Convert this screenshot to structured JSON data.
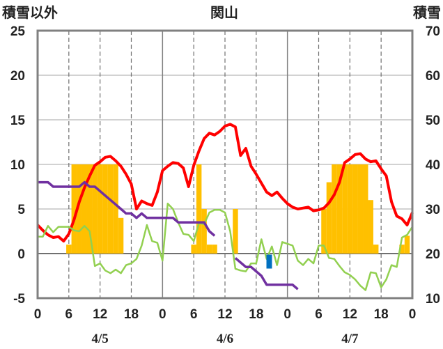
{
  "chart_data": {
    "type": "line",
    "title": "関山",
    "left_axis_label": "積雪以外",
    "right_axis_label": "積雪",
    "ylim_left": [
      -5,
      25
    ],
    "ylim_right": [
      10,
      70
    ],
    "yticks_left": [
      "25",
      "20",
      "15",
      "10",
      "5",
      "0",
      "-5"
    ],
    "yticks_right": [
      "70",
      "60",
      "50",
      "40",
      "30",
      "20",
      "10"
    ],
    "xlim_hours": [
      0,
      72
    ],
    "xtick_labels": [
      "0",
      "6",
      "12",
      "18",
      "0",
      "6",
      "12",
      "18",
      "0",
      "6",
      "12",
      "18",
      "0"
    ],
    "date_labels": [
      "4/5",
      "4/6",
      "4/7"
    ],
    "grid": "vertical dashed every 6 h; solid at day boundaries and 0",
    "colors": {
      "precipitation": "#ffc000",
      "temperature": "#ff0000",
      "wind": "#92d050",
      "snow": "#7030a0",
      "marker": "#0070c0"
    },
    "bars": {
      "name": "precipitation",
      "axis": "left",
      "x": [
        6,
        7,
        8,
        9,
        10,
        11,
        12,
        13,
        14,
        15,
        16,
        30,
        31,
        32,
        33,
        34,
        38,
        55,
        56,
        57,
        58,
        59,
        60,
        61,
        62,
        63,
        64,
        65,
        66,
        67,
        68,
        70,
        71
      ],
      "values": [
        1,
        10,
        10,
        10,
        10,
        10,
        10,
        10,
        10,
        10,
        4,
        1,
        10,
        5,
        1,
        1,
        5,
        5,
        8,
        10,
        10,
        10,
        10,
        10,
        10,
        10,
        6,
        1,
        0,
        0,
        0,
        1,
        2
      ]
    },
    "series": [
      {
        "name": "temperature",
        "axis": "left",
        "x": [
          0,
          1,
          2,
          3,
          4,
          5,
          6,
          7,
          8,
          9,
          10,
          11,
          12,
          13,
          14,
          15,
          16,
          17,
          18,
          19,
          20,
          21,
          22,
          23,
          24,
          25,
          26,
          27,
          28,
          29,
          30,
          31,
          32,
          33,
          34,
          35,
          36,
          37,
          38,
          39,
          40,
          41,
          42,
          43,
          44,
          45,
          46,
          47,
          48,
          49,
          50,
          51,
          52,
          53,
          54,
          55,
          56,
          57,
          58,
          59,
          60,
          61,
          62,
          63,
          64,
          65,
          66,
          67,
          68,
          69,
          70,
          71,
          72
        ],
        "values": [
          3.2,
          2.6,
          2.1,
          1.8,
          1.9,
          1.4,
          2.2,
          3.8,
          5.8,
          7.4,
          8.7,
          9.9,
          10.3,
          10.8,
          10.9,
          10.4,
          9.8,
          8.9,
          7.8,
          5,
          5.9,
          5.6,
          5.4,
          6.9,
          9.3,
          9.8,
          10.2,
          10.1,
          9.6,
          7.5,
          9.9,
          11.5,
          12.9,
          13.5,
          13.3,
          13.7,
          14.3,
          14.5,
          14.2,
          11,
          11.8,
          9.8,
          8.9,
          7.9,
          6.9,
          6.5,
          6.9,
          6.2,
          5.6,
          5.2,
          5,
          5.1,
          5.2,
          4.8,
          4.9,
          5.1,
          5.7,
          6.6,
          8,
          10.2,
          10.6,
          11.1,
          11.2,
          10.6,
          10.3,
          10.4,
          9.5,
          8.7,
          5.8,
          4.2,
          3.9,
          3.2,
          4.6
        ]
      },
      {
        "name": "wind",
        "axis": "left",
        "x": [
          0,
          1,
          2,
          3,
          4,
          5,
          6,
          7,
          8,
          9,
          10,
          11,
          12,
          13,
          14,
          15,
          16,
          17,
          18,
          19,
          20,
          21,
          22,
          23,
          24,
          25,
          26,
          27,
          28,
          29,
          30,
          31,
          32,
          33,
          34,
          35,
          36,
          37,
          38,
          39,
          40,
          41,
          42,
          43,
          44,
          45,
          46,
          47,
          48,
          49,
          50,
          51,
          52,
          53,
          54,
          55,
          56,
          57,
          58,
          59,
          60,
          61,
          62,
          63,
          64,
          65,
          66,
          67,
          68,
          69,
          70,
          71,
          72
        ],
        "values": [
          1.9,
          1.9,
          3.1,
          2.4,
          3,
          3,
          3,
          2.6,
          2.5,
          3.1,
          2.5,
          -1.4,
          -1.1,
          -1.9,
          -2.2,
          -1.8,
          -2.2,
          -1.3,
          -1.1,
          -0.6,
          0.9,
          3.2,
          1.4,
          1.2,
          -0.8,
          5.6,
          5,
          3.5,
          2.2,
          2.1,
          1.4,
          3.4,
          3.3,
          4.6,
          4.9,
          4.9,
          4.6,
          2.5,
          -1.7,
          -1.9,
          -2,
          -1.1,
          -1.1,
          1.6,
          -0.6,
          0.8,
          -1.3,
          1.3,
          1.1,
          0.9,
          -0.8,
          -1.3,
          -0.6,
          -1.1,
          0.9,
          0.9,
          -0.5,
          -0.6,
          -1.4,
          -2.1,
          -2.4,
          -2.9,
          -3.6,
          -4.1,
          -2.1,
          -2.2,
          -3.8,
          -2.9,
          -1.3,
          -1.5,
          1.8,
          2.1,
          3
        ]
      },
      {
        "name": "snow_depth",
        "axis": "right",
        "x": [
          0,
          1,
          2,
          3,
          4,
          5,
          6,
          7,
          8,
          9,
          10,
          11,
          12,
          13,
          14,
          15,
          16,
          17,
          18,
          19,
          20,
          21,
          22,
          23,
          24,
          25,
          26,
          27,
          28,
          29,
          30,
          31,
          32,
          33,
          34
        ],
        "values": [
          36,
          36,
          36,
          35,
          35,
          35,
          35,
          35,
          35,
          36,
          35,
          35,
          34,
          33,
          32,
          31,
          30,
          29,
          29,
          28,
          29,
          28,
          28,
          28,
          28,
          28,
          28,
          27,
          27,
          27,
          27,
          27,
          27,
          25,
          24
        ]
      },
      {
        "name": "snow_depth",
        "axis": "right",
        "x": [
          38,
          39,
          40,
          41,
          42,
          43,
          44,
          45,
          46,
          47,
          48,
          49,
          50
        ],
        "values": [
          19,
          18,
          17,
          17,
          16,
          15,
          13,
          13,
          13,
          13,
          13,
          13,
          12
        ]
      },
      {
        "name": "snow_depth",
        "axis": "right",
        "x": [],
        "values": []
      }
    ],
    "marker": {
      "name": "marker",
      "axis": "left",
      "x": 44.5,
      "value": -0.9
    }
  }
}
